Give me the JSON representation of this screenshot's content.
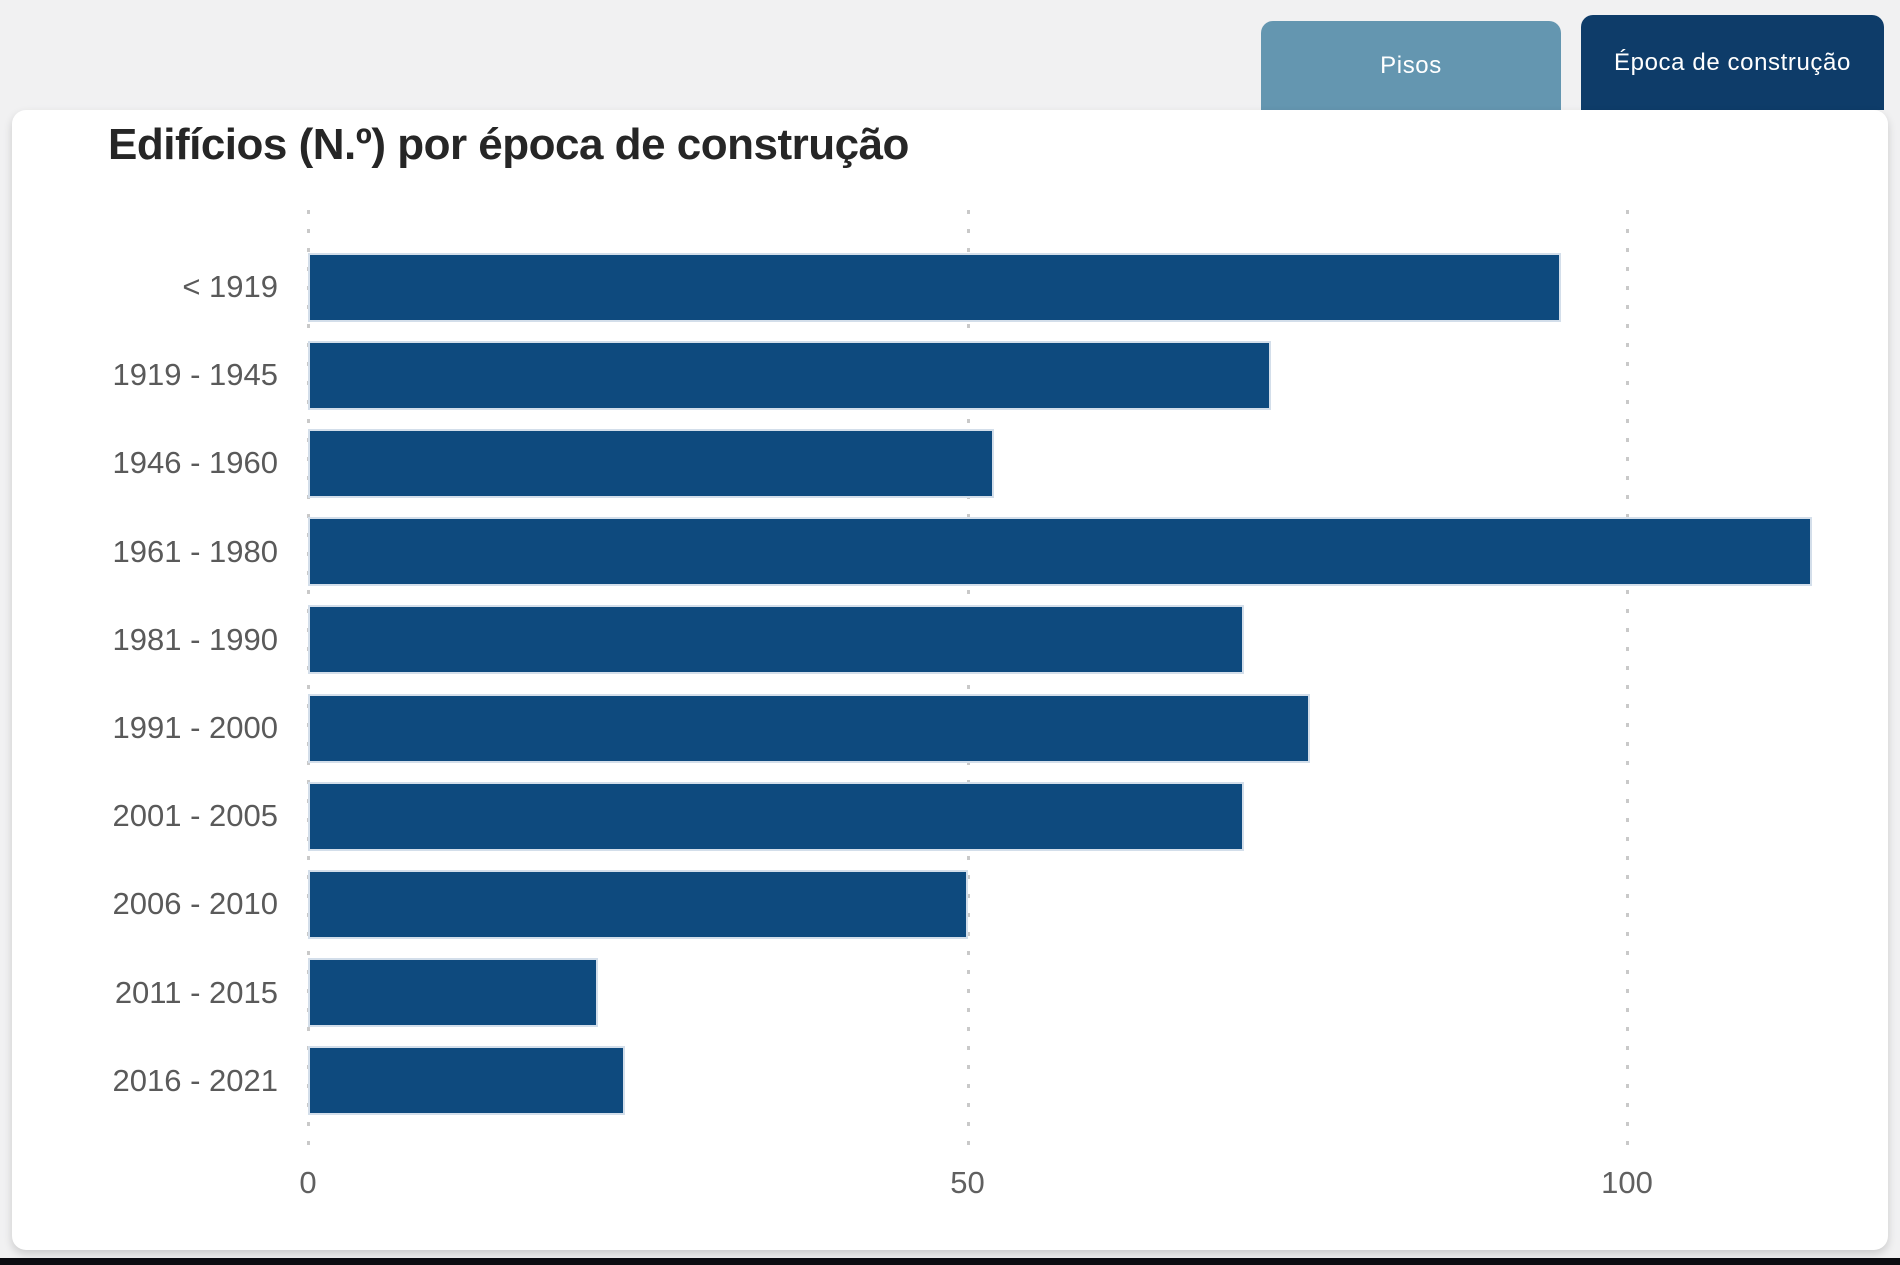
{
  "tabs": [
    {
      "label": "Pisos",
      "active": false
    },
    {
      "label": "Época de construção",
      "active": true
    }
  ],
  "chart_data": {
    "type": "bar",
    "orientation": "horizontal",
    "title": "Edifícios (N.º) por época de construção",
    "categories": [
      "< 1919",
      "1919 - 1945",
      "1946 - 1960",
      "1961 - 1980",
      "1981 - 1990",
      "1991 - 2000",
      "2001 - 2005",
      "2006 - 2010",
      "2011 - 2015",
      "2016 - 2021"
    ],
    "values": [
      95,
      73,
      52,
      114,
      71,
      76,
      71,
      50,
      22,
      24
    ],
    "xlabel": "",
    "ylabel": "",
    "xticks": [
      0,
      50,
      100
    ],
    "xlim": [
      0,
      117
    ],
    "grid": "dotted-vertical",
    "legend": "none",
    "colors": {
      "bar": "#0e4a7e",
      "tab_active_bg": "#0e3c69",
      "tab_inactive_bg": "#6496b0",
      "background": "#f1f1f2",
      "card": "#ffffff",
      "title_text": "#262626",
      "category_label_text": "#5a5a5a",
      "tick_label_text": "#606060",
      "gridline": "#c9c9c9",
      "bottom_strip": "#0c0c11"
    }
  }
}
